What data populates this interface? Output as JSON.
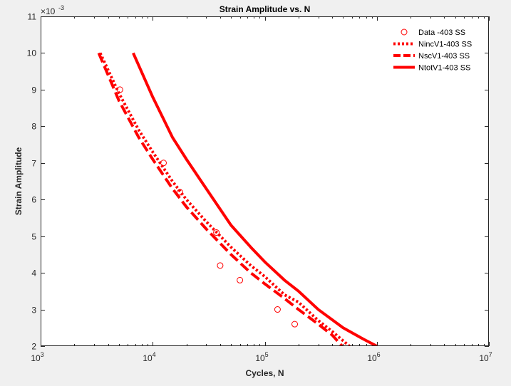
{
  "chart_data": {
    "type": "line",
    "title": "Strain Amplitude vs. N",
    "xlabel": "Cycles, N",
    "ylabel": "Strain Amplitude",
    "y_multiplier_label": "×10",
    "y_multiplier_exp": "-3",
    "xscale": "log",
    "xlim": [
      1000,
      10000000
    ],
    "ylim": [
      0.002,
      0.011
    ],
    "x_tick_base": "10",
    "x_ticks": [
      {
        "value": 1000,
        "exp": "3"
      },
      {
        "value": 10000,
        "exp": "4"
      },
      {
        "value": 100000,
        "exp": "5"
      },
      {
        "value": 1000000,
        "exp": "6"
      },
      {
        "value": 10000000,
        "exp": "7"
      }
    ],
    "y_ticks": [
      {
        "value": 0.002,
        "label": "2"
      },
      {
        "value": 0.003,
        "label": "3"
      },
      {
        "value": 0.004,
        "label": "4"
      },
      {
        "value": 0.005,
        "label": "5"
      },
      {
        "value": 0.006,
        "label": "6"
      },
      {
        "value": 0.007,
        "label": "7"
      },
      {
        "value": 0.008,
        "label": "8"
      },
      {
        "value": 0.009,
        "label": "9"
      },
      {
        "value": 0.01,
        "label": "10"
      },
      {
        "value": 0.011,
        "label": "11"
      }
    ],
    "grid": false,
    "legend_position": "top-right",
    "color": "#ff0000",
    "series": [
      {
        "name": "Data -403 SS",
        "style": "markers",
        "x": [
          5100,
          12500,
          17500,
          37000,
          40000,
          60000,
          130000,
          185000
        ],
        "y": [
          0.009,
          0.007,
          0.0062,
          0.0051,
          0.0042,
          0.0038,
          0.003,
          0.0026
        ]
      },
      {
        "name": "NincV1-403 SS",
        "style": "dotted",
        "x": [
          3400,
          5000,
          7500,
          10000,
          15000,
          20000,
          30000,
          50000,
          75000,
          100000,
          150000,
          200000,
          300000,
          400000,
          570000
        ],
        "y": [
          0.01,
          0.0089,
          0.0079,
          0.0073,
          0.0065,
          0.006,
          0.0054,
          0.0047,
          0.0042,
          0.0039,
          0.0034,
          0.0032,
          0.0027,
          0.0024,
          0.002
        ]
      },
      {
        "name": "NscV1-403 SS",
        "style": "dashed",
        "x": [
          3300,
          5000,
          7500,
          10000,
          15000,
          20000,
          30000,
          50000,
          75000,
          100000,
          150000,
          200000,
          300000,
          400000,
          490000
        ],
        "y": [
          0.01,
          0.0087,
          0.0077,
          0.0071,
          0.0063,
          0.0058,
          0.0052,
          0.0045,
          0.004,
          0.0037,
          0.0033,
          0.003,
          0.0026,
          0.0023,
          0.002
        ]
      },
      {
        "name": "NtotV1-403 SS",
        "style": "solid",
        "x": [
          6700,
          10000,
          15000,
          20000,
          30000,
          50000,
          75000,
          100000,
          150000,
          200000,
          300000,
          500000,
          750000,
          1000000
        ],
        "y": [
          0.01,
          0.0088,
          0.0077,
          0.0071,
          0.0063,
          0.0053,
          0.0047,
          0.0043,
          0.0038,
          0.0035,
          0.003,
          0.0025,
          0.0022,
          0.002
        ]
      }
    ]
  }
}
